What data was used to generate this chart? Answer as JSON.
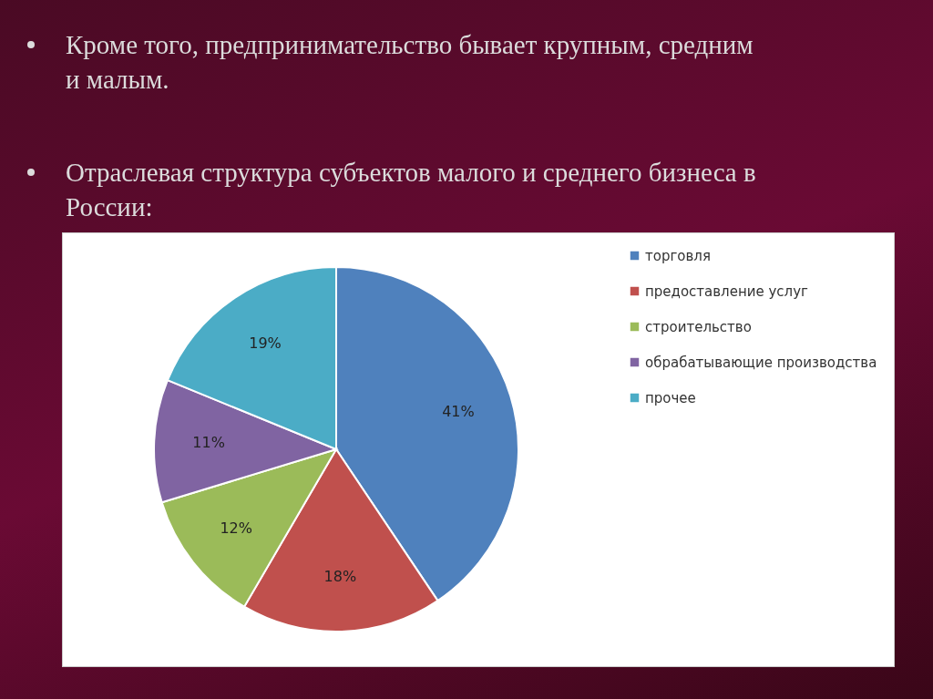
{
  "chart_data": {
    "type": "pie",
    "title": "Отраслевая структура субъектов малого и среднего бизнеса в России:",
    "annotations": [
      "Кроме того, предпринимательство бывает крупным, средним и малым."
    ],
    "categories": [
      "торговля",
      "предоставление услуг",
      "строительство",
      "обрабатывающие производства",
      "прочее"
    ],
    "values": [
      41,
      18,
      12,
      11,
      19
    ],
    "colors": [
      "#4f81bd",
      "#c0504d",
      "#9bbb59",
      "#8064a2",
      "#4bacc6"
    ],
    "value_labels": [
      "41%",
      "18%",
      "12%",
      "11%",
      "19%"
    ],
    "legend": "right"
  }
}
